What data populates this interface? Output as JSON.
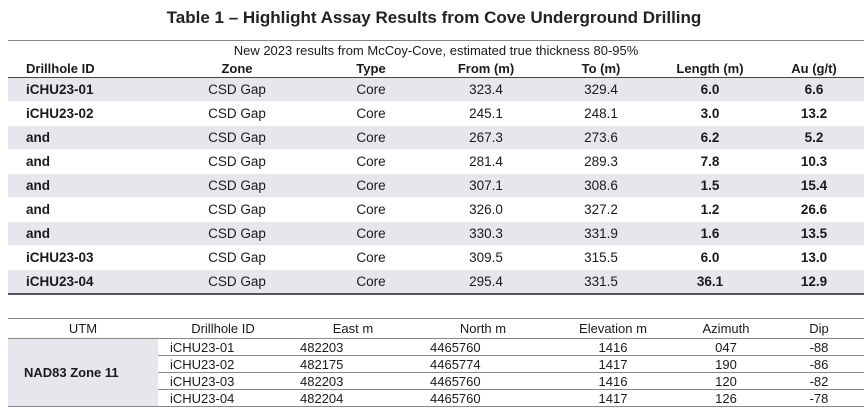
{
  "title": "Table 1 – Highlight Assay Results from Cove Underground Drilling",
  "assay": {
    "subtitle": "New 2023 results from McCoy-Cove, estimated true thickness 80-95%",
    "headers": [
      "Drillhole ID",
      "Zone",
      "Type",
      "From (m)",
      "To (m)",
      "Length (m)",
      "Au (g/t)"
    ],
    "rows": [
      [
        "iCHU23-01",
        "CSD Gap",
        "Core",
        "323.4",
        "329.4",
        "6.0",
        "6.6"
      ],
      [
        "iCHU23-02",
        "CSD Gap",
        "Core",
        "245.1",
        "248.1",
        "3.0",
        "13.2"
      ],
      [
        "and",
        "CSD Gap",
        "Core",
        "267.3",
        "273.6",
        "6.2",
        "5.2"
      ],
      [
        "and",
        "CSD Gap",
        "Core",
        "281.4",
        "289.3",
        "7.8",
        "10.3"
      ],
      [
        "and",
        "CSD Gap",
        "Core",
        "307.1",
        "308.6",
        "1.5",
        "15.4"
      ],
      [
        "and",
        "CSD Gap",
        "Core",
        "326.0",
        "327.2",
        "1.2",
        "26.6"
      ],
      [
        "and",
        "CSD Gap",
        "Core",
        "330.3",
        "331.9",
        "1.6",
        "13.5"
      ],
      [
        "iCHU23-03",
        "CSD Gap",
        "Core",
        "309.5",
        "315.5",
        "6.0",
        "13.0"
      ],
      [
        "iCHU23-04",
        "CSD Gap",
        "Core",
        "295.4",
        "331.5",
        "36.1",
        "12.9"
      ]
    ]
  },
  "utm": {
    "headers": [
      "UTM",
      "Drillhole ID",
      "East m",
      "North m",
      "Elevation m",
      "Azimuth",
      "Dip"
    ],
    "zone_label": "NAD83 Zone 11",
    "rows": [
      [
        "iCHU23-01",
        "482203",
        "4465760",
        "1416",
        "047",
        "-88"
      ],
      [
        "iCHU23-02",
        "482175",
        "4465774",
        "1417",
        "190",
        "-86"
      ],
      [
        "iCHU23-03",
        "482203",
        "4465760",
        "1416",
        "120",
        "-82"
      ],
      [
        "iCHU23-04",
        "482204",
        "4465760",
        "1417",
        "126",
        "-78"
      ]
    ]
  }
}
